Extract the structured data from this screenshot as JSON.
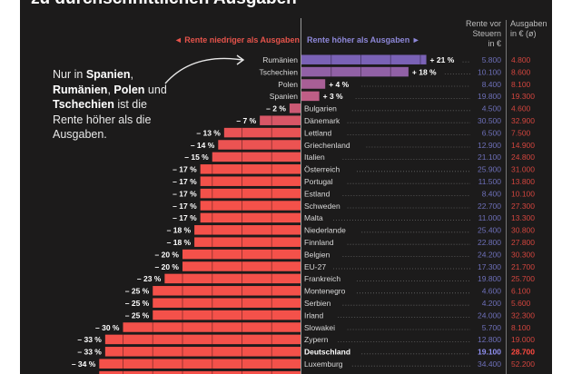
{
  "chart_data": {
    "type": "bar",
    "title": "zu durchschnittlichen Ausgaben",
    "legend_left": "◄ Rente niedriger als Ausgaben",
    "legend_right": "Rente höher als Ausgaben ►",
    "column_headers": {
      "rente": [
        "Rente vor",
        "Steuern",
        "in €"
      ],
      "ausgaben": [
        "Ausgaben",
        "in € (ø)"
      ]
    },
    "annotation": {
      "parts": [
        {
          "t": "Nur in ",
          "b": false
        },
        {
          "t": "Spanien",
          "b": true
        },
        {
          "t": ", ",
          "b": false
        },
        {
          "t": "Rumänien",
          "b": true
        },
        {
          "t": ", ",
          "b": false
        },
        {
          "t": "Polen",
          "b": true
        },
        {
          "t": " und ",
          "b": false
        },
        {
          "t": "Tschechien",
          "b": true
        },
        {
          "t": " ist die Rente höher als die Ausgaben.",
          "b": false
        }
      ]
    },
    "xlim_percent": [
      -35,
      25
    ],
    "grid_step_percent": 5,
    "colors": {
      "positive_start": "#7a62b6",
      "positive_end": "#bf5e86",
      "negative_start": "#c55a7a",
      "negative_end": "#f4514a",
      "rente_text": "#6d6fb8",
      "ausgaben_text": "#d2453e",
      "highlight_rente": "#8f8ff0",
      "highlight_ausgaben": "#ff4a40"
    },
    "rows": [
      {
        "country": "Rumänien",
        "percent": 21,
        "label": "+ 21 %",
        "rente": "5.800",
        "ausgaben": "4.800"
      },
      {
        "country": "Tschechien",
        "percent": 18,
        "label": "+ 18 %",
        "rente": "10.100",
        "ausgaben": "8.600"
      },
      {
        "country": "Polen",
        "percent": 4,
        "label": "+ 4 %",
        "rente": "8.400",
        "ausgaben": "8.100"
      },
      {
        "country": "Spanien",
        "percent": 3,
        "label": "+ 3 %",
        "rente": "19.800",
        "ausgaben": "19.300"
      },
      {
        "country": "Bulgarien",
        "percent": -2,
        "label": "– 2 %",
        "rente": "4.500",
        "ausgaben": "4.600"
      },
      {
        "country": "Dänemark",
        "percent": -7,
        "label": "– 7 %",
        "rente": "30.500",
        "ausgaben": "32.900"
      },
      {
        "country": "Lettland",
        "percent": -13,
        "label": "– 13 %",
        "rente": "6.500",
        "ausgaben": "7.500"
      },
      {
        "country": "Griechenland",
        "percent": -14,
        "label": "– 14 %",
        "rente": "12.900",
        "ausgaben": "14.900"
      },
      {
        "country": "Italien",
        "percent": -15,
        "label": "– 15 %",
        "rente": "21.100",
        "ausgaben": "24.800"
      },
      {
        "country": "Österreich",
        "percent": -17,
        "label": "– 17 %",
        "rente": "25.900",
        "ausgaben": "31.000"
      },
      {
        "country": "Portugal",
        "percent": -17,
        "label": "– 17 %",
        "rente": "11.500",
        "ausgaben": "13.800"
      },
      {
        "country": "Estland",
        "percent": -17,
        "label": "– 17 %",
        "rente": "8.400",
        "ausgaben": "10.100"
      },
      {
        "country": "Schweden",
        "percent": -17,
        "label": "– 17 %",
        "rente": "22.700",
        "ausgaben": "27.300"
      },
      {
        "country": "Malta",
        "percent": -17,
        "label": "– 17 %",
        "rente": "11.000",
        "ausgaben": "13.300"
      },
      {
        "country": "Niederlande",
        "percent": -18,
        "label": "– 18 %",
        "rente": "25.400",
        "ausgaben": "30.800"
      },
      {
        "country": "Finnland",
        "percent": -18,
        "label": "– 18 %",
        "rente": "22.800",
        "ausgaben": "27.800"
      },
      {
        "country": "Belgien",
        "percent": -20,
        "label": "– 20 %",
        "rente": "24.200",
        "ausgaben": "30.300"
      },
      {
        "country": "EU-27",
        "percent": -20,
        "label": "– 20 %",
        "rente": "17.300",
        "ausgaben": "21.700"
      },
      {
        "country": "Frankreich",
        "percent": -23,
        "label": "– 23 %",
        "rente": "19.800",
        "ausgaben": "25.700"
      },
      {
        "country": "Montenegro",
        "percent": -25,
        "label": "– 25 %",
        "rente": "4.600",
        "ausgaben": "6.100"
      },
      {
        "country": "Serbien",
        "percent": -25,
        "label": "– 25 %",
        "rente": "4.200",
        "ausgaben": "5.600"
      },
      {
        "country": "Irland",
        "percent": -25,
        "label": "– 25 %",
        "rente": "24.000",
        "ausgaben": "32.300"
      },
      {
        "country": "Slowakei",
        "percent": -30,
        "label": "– 30 %",
        "rente": "5.700",
        "ausgaben": "8.100"
      },
      {
        "country": "Zypern",
        "percent": -33,
        "label": "– 33 %",
        "rente": "12.800",
        "ausgaben": "19.000"
      },
      {
        "country": "Deutschland",
        "percent": -33,
        "label": "– 33 %",
        "rente": "19.100",
        "ausgaben": "28.700",
        "highlight": true
      },
      {
        "country": "Luxemburg",
        "percent": -34,
        "label": "– 34 %",
        "rente": "34.400",
        "ausgaben": "52.200"
      },
      {
        "country": "",
        "percent": -34,
        "label": "",
        "rente": "",
        "ausgaben": ""
      }
    ]
  }
}
